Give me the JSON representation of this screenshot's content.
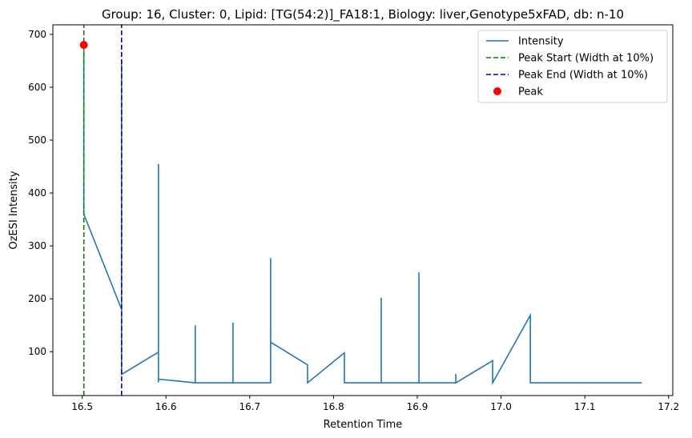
{
  "chart_data": {
    "type": "line",
    "title": "Group: 16, Cluster: 0, Lipid: [TG(54:2)]_FA18:1, Biology: liver,Genotype5xFAD, db: n-10",
    "xlabel": "Retention Time",
    "ylabel": "OzESI Intensity",
    "xlim": [
      16.465,
      17.205
    ],
    "ylim": [
      17,
      718
    ],
    "xticks": [
      "16.5",
      "16.6",
      "16.7",
      "16.8",
      "16.9",
      "17.0",
      "17.1",
      "17.2"
    ],
    "xtick_values": [
      16.5,
      16.6,
      16.7,
      16.8,
      16.9,
      17.0,
      17.1,
      17.2
    ],
    "yticks": [
      "100",
      "200",
      "300",
      "400",
      "500",
      "600",
      "700"
    ],
    "ytick_values": [
      100,
      200,
      300,
      400,
      500,
      600,
      700
    ],
    "grid": false,
    "legend_position": "top-right",
    "series": [
      {
        "name": "Intensity",
        "color": "#1f77b4",
        "style": "solid",
        "x": [
          16.502,
          16.502,
          16.547,
          16.547,
          16.547,
          16.591,
          16.591,
          16.591,
          16.591,
          16.635,
          16.635,
          16.635,
          16.68,
          16.68,
          16.68,
          16.725,
          16.725,
          16.725,
          16.769,
          16.769,
          16.813,
          16.813,
          16.857,
          16.857,
          16.857,
          16.902,
          16.902,
          16.902,
          16.946,
          16.946,
          16.946,
          16.99,
          16.99,
          17.035,
          17.035,
          17.079,
          17.124,
          17.168
        ],
        "y": [
          680,
          360,
          180,
          650,
          57,
          99,
          455,
          42,
          48,
          41,
          150,
          41,
          41,
          155,
          41,
          41,
          277,
          118,
          75,
          41,
          98,
          41,
          41,
          202,
          41,
          41,
          250,
          41,
          41,
          58,
          41,
          83,
          41,
          169,
          41,
          41,
          41,
          41
        ]
      },
      {
        "name": "Peak Start (Width at 10%)",
        "color": "#008000",
        "style": "dashed",
        "x": [
          16.502,
          16.502
        ],
        "y": [
          17,
          718
        ]
      },
      {
        "name": "Peak End (Width at 10%)",
        "color": "#0000cc",
        "style": "dashed",
        "x": [
          16.547,
          16.547
        ],
        "y": [
          17,
          718
        ]
      },
      {
        "name": "Peak",
        "color": "#ff0000",
        "style": "marker",
        "x": [
          16.502
        ],
        "y": [
          680
        ]
      }
    ]
  }
}
